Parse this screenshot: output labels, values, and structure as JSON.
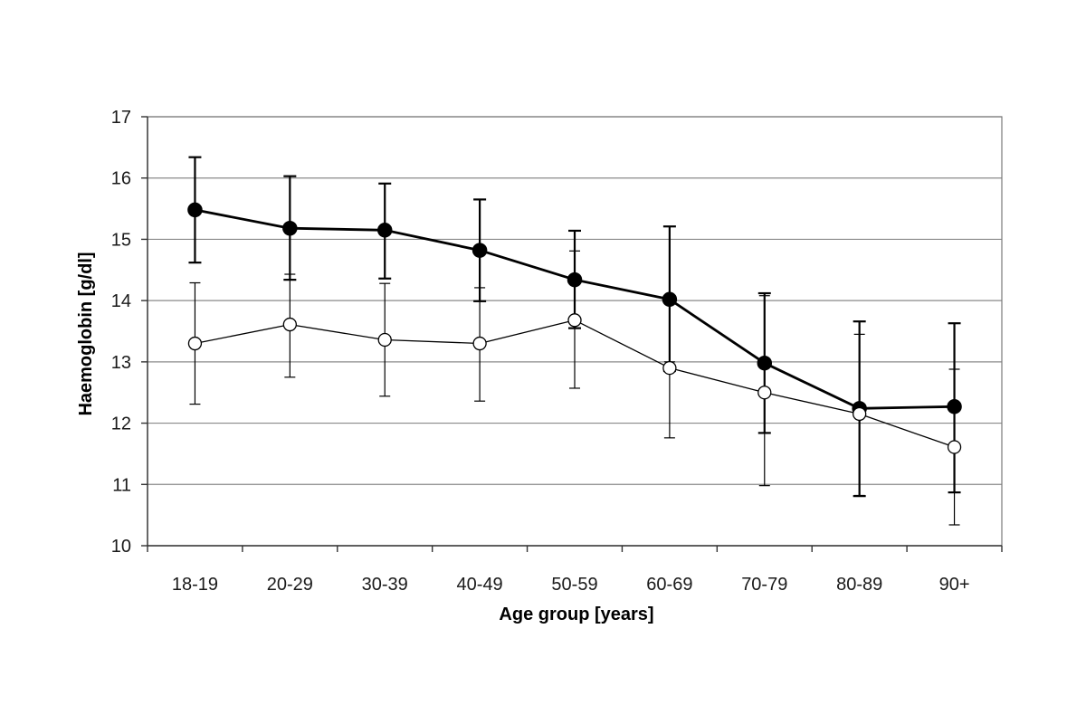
{
  "chart_data": {
    "type": "line",
    "title": "",
    "xlabel": "Age group [years]",
    "ylabel": "Haemoglobin [g/dl]",
    "ylim": [
      10,
      17
    ],
    "yticks": [
      "10",
      "11",
      "12",
      "13",
      "14",
      "15",
      "16",
      "17"
    ],
    "categories": [
      "18-19",
      "20-29",
      "30-39",
      "40-49",
      "50-59",
      "60-69",
      "70-79",
      "80-89",
      "90+"
    ],
    "grid": "horizontal",
    "legend": "none",
    "series": [
      {
        "marker": "filled-circle",
        "color": "#000000",
        "values": [
          15.48,
          15.18,
          15.15,
          14.82,
          14.34,
          14.02,
          12.98,
          12.24,
          12.27
        ],
        "error_low": [
          14.62,
          14.34,
          14.36,
          13.99,
          13.55,
          12.85,
          11.84,
          10.81,
          10.87
        ],
        "error_high": [
          16.34,
          16.03,
          15.91,
          15.65,
          15.14,
          15.21,
          14.12,
          13.66,
          13.63
        ]
      },
      {
        "marker": "open-circle",
        "color": "#000000",
        "values": [
          13.3,
          13.61,
          13.36,
          13.3,
          13.68,
          12.9,
          12.5,
          12.15,
          11.61
        ],
        "error_low": [
          12.31,
          12.75,
          12.44,
          12.36,
          12.57,
          11.76,
          10.98,
          10.82,
          10.34
        ],
        "error_high": [
          14.29,
          14.43,
          14.28,
          14.21,
          14.81,
          13.0,
          14.08,
          13.45,
          12.88
        ]
      }
    ]
  }
}
